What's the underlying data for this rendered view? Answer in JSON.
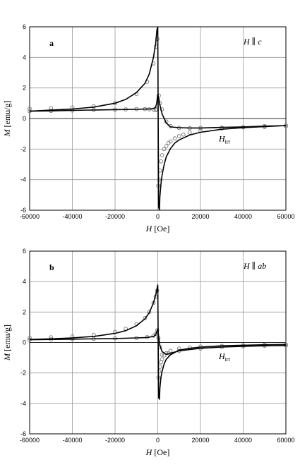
{
  "chart_data": [
    {
      "type": "scatter",
      "panel_label": "a",
      "field_orientation": "H || c",
      "annotation": "H_irr",
      "xlabel": "H [Oe]",
      "ylabel": "M [emu/g]",
      "xlim": [
        -60000,
        60000
      ],
      "ylim": [
        -6,
        6
      ],
      "xticks": [
        -60000,
        -40000,
        -20000,
        0,
        20000,
        40000,
        60000
      ],
      "yticks": [
        -6,
        -4,
        -2,
        0,
        2,
        4,
        6
      ],
      "grid": true,
      "series": [
        {
          "style": "open-circles",
          "color": "#808080",
          "x": [
            -60000,
            -50000,
            -40000,
            -30000,
            -20000,
            -10000,
            -5000,
            -2000,
            -800,
            -200,
            200,
            600,
            1000,
            1500,
            2000,
            3000,
            4000,
            5000,
            6000,
            8000,
            10000,
            12000,
            15000,
            20000,
            30000,
            40000,
            50000,
            60000,
            60000,
            50000,
            40000,
            30000,
            20000,
            15000,
            10000,
            6000,
            4000,
            2000,
            1000,
            500,
            -500,
            -1000,
            -2000,
            -4000,
            -6000,
            -10000,
            -15000,
            -20000,
            -30000,
            -40000,
            -50000,
            -60000
          ],
          "y": [
            0.65,
            0.67,
            0.72,
            0.8,
            1.0,
            1.6,
            2.4,
            3.6,
            4.7,
            5.2,
            -4.4,
            -4.0,
            -3.4,
            -2.8,
            -2.4,
            -2.0,
            -1.8,
            -1.6,
            -1.5,
            -1.3,
            -1.15,
            -1.05,
            -0.92,
            -0.8,
            -0.65,
            -0.57,
            -0.5,
            -0.45,
            -0.5,
            -0.55,
            -0.58,
            -0.6,
            -0.62,
            -0.63,
            -0.62,
            -0.5,
            -0.2,
            0.6,
            1.0,
            1.5,
            0.6,
            0.55,
            0.58,
            0.6,
            0.62,
            0.62,
            0.6,
            0.58,
            0.56,
            0.52,
            0.5,
            0.48
          ]
        },
        {
          "style": "line",
          "color": "#000000",
          "x": [
            -60000,
            -50000,
            -40000,
            -30000,
            -20000,
            -15000,
            -10000,
            -6000,
            -4000,
            -2000,
            -1000,
            -400,
            0,
            400,
            800,
            1000,
            1500,
            2000,
            3000,
            4000,
            6000,
            8000,
            10000,
            15000,
            20000,
            30000,
            40000,
            50000,
            60000
          ],
          "y": [
            0.48,
            0.55,
            0.62,
            0.75,
            1.0,
            1.25,
            1.7,
            2.3,
            2.9,
            4.0,
            4.9,
            5.8,
            6.0,
            -5.8,
            -6.0,
            -5.1,
            -4.3,
            -3.7,
            -3.0,
            -2.5,
            -1.95,
            -1.6,
            -1.4,
            -1.08,
            -0.9,
            -0.7,
            -0.6,
            -0.53,
            -0.46
          ]
        },
        {
          "style": "line",
          "color": "#000000",
          "x": [
            60000,
            50000,
            40000,
            30000,
            20000,
            15000,
            10000,
            6000,
            4000,
            2000,
            1000,
            500,
            0,
            -500,
            -1000,
            -2000,
            -4000,
            -6000,
            -10000,
            -20000,
            -30000,
            -40000,
            -50000,
            -60000
          ],
          "y": [
            -0.46,
            -0.5,
            -0.55,
            -0.58,
            -0.62,
            -0.62,
            -0.6,
            -0.55,
            -0.3,
            0.3,
            0.9,
            1.3,
            1.6,
            1.0,
            0.75,
            0.65,
            0.62,
            0.62,
            0.6,
            0.58,
            0.56,
            0.53,
            0.5,
            0.48
          ]
        }
      ]
    },
    {
      "type": "scatter",
      "panel_label": "b",
      "field_orientation": "H || ab",
      "annotation": "H_irr",
      "xlabel": "H [Oe]",
      "ylabel": "M [emu/g]",
      "xlim": [
        -60000,
        60000
      ],
      "ylim": [
        -6,
        6
      ],
      "xticks": [
        -60000,
        -40000,
        -20000,
        0,
        20000,
        40000,
        60000
      ],
      "yticks": [
        -6,
        -4,
        -2,
        0,
        2,
        4,
        6
      ],
      "grid": true,
      "series": [
        {
          "style": "open-circles",
          "color": "#808080",
          "x": [
            -60000,
            -50000,
            -40000,
            -30000,
            -20000,
            -15000,
            -10000,
            -6000,
            -4000,
            -2000,
            -1000,
            -300,
            300,
            700,
            1000,
            1500,
            2000,
            3000,
            4000,
            6000,
            10000,
            15000,
            20000,
            30000,
            40000,
            50000,
            60000,
            60000,
            50000,
            40000,
            30000,
            20000,
            10000,
            5000,
            2000,
            1000,
            300,
            -300,
            -1000,
            -2000,
            -5000,
            -10000,
            -20000,
            -30000,
            -40000,
            -50000,
            -60000
          ],
          "y": [
            0.3,
            0.34,
            0.4,
            0.5,
            0.7,
            0.9,
            1.2,
            1.6,
            2.0,
            2.6,
            3.0,
            3.4,
            -2.3,
            -1.9,
            -1.6,
            -1.3,
            -1.1,
            -0.85,
            -0.7,
            -0.55,
            -0.4,
            -0.33,
            -0.27,
            -0.22,
            -0.18,
            -0.15,
            -0.13,
            -0.2,
            -0.22,
            -0.25,
            -0.3,
            -0.4,
            -0.55,
            -0.7,
            -0.8,
            -0.3,
            0.3,
            0.8,
            0.55,
            0.45,
            0.35,
            0.3,
            0.27,
            0.24,
            0.22,
            0.2,
            0.18
          ]
        },
        {
          "style": "line",
          "color": "#000000",
          "x": [
            -60000,
            -50000,
            -40000,
            -30000,
            -20000,
            -15000,
            -10000,
            -6000,
            -4000,
            -2000,
            -1000,
            -400,
            0,
            400,
            800,
            1000,
            1500,
            2000,
            3000,
            4000,
            6000,
            10000,
            15000,
            20000,
            30000,
            40000,
            50000,
            60000
          ],
          "y": [
            0.2,
            0.24,
            0.3,
            0.4,
            0.6,
            0.78,
            1.1,
            1.55,
            1.95,
            2.6,
            3.1,
            3.5,
            3.8,
            -3.6,
            -3.75,
            -3.0,
            -2.3,
            -1.9,
            -1.4,
            -1.1,
            -0.8,
            -0.5,
            -0.38,
            -0.3,
            -0.22,
            -0.18,
            -0.15,
            -0.13
          ]
        },
        {
          "style": "line",
          "color": "#000000",
          "x": [
            60000,
            50000,
            40000,
            30000,
            20000,
            10000,
            6000,
            4000,
            2000,
            1000,
            500,
            0,
            -500,
            -1000,
            -2000,
            -4000,
            -6000,
            -10000,
            -20000,
            -30000,
            -40000,
            -50000,
            -60000
          ],
          "y": [
            -0.2,
            -0.22,
            -0.25,
            -0.3,
            -0.38,
            -0.55,
            -0.7,
            -0.78,
            -0.6,
            -0.2,
            0.3,
            0.9,
            0.7,
            0.5,
            0.4,
            0.35,
            0.32,
            0.3,
            0.26,
            0.24,
            0.22,
            0.2,
            0.18
          ]
        }
      ]
    }
  ]
}
